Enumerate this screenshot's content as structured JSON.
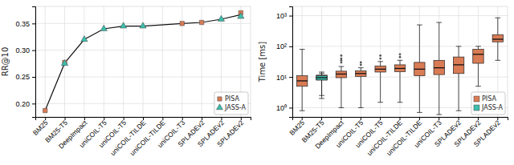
{
  "chart_data": [
    {
      "type": "line",
      "ylabel": "RR@10",
      "xlim": [
        -0.5,
        10.5
      ],
      "xticks": [
        {
          "value": 0,
          "label": "BM25"
        },
        {
          "value": 1,
          "label": "BM25-T5"
        },
        {
          "value": 2,
          "label": "DeepImpact"
        },
        {
          "value": 3,
          "label": "uniCOIL-T5"
        },
        {
          "value": 4,
          "label": "uniCOIL-T5"
        },
        {
          "value": 5,
          "label": "uniCOIL-TILDE"
        },
        {
          "value": 6,
          "label": "uniCOIL-TILDE"
        },
        {
          "value": 7,
          "label": "uniCOIL-T3"
        },
        {
          "value": 8,
          "label": "SPLADEv2"
        },
        {
          "value": 9,
          "label": "SPLADEv2"
        },
        {
          "value": 10,
          "label": "SPLADEv2"
        }
      ],
      "ylim": [
        0.175,
        0.382
      ],
      "yticks": [
        {
          "value": 0.2,
          "label": "0.20"
        },
        0.25,
        {
          "value": 0.3,
          "label": "0.30"
        },
        0.35
      ],
      "grid": true,
      "legend": "lower right",
      "series": [
        {
          "type": "line",
          "color": "#111111",
          "x": [
            0,
            1,
            2,
            3,
            4,
            5,
            7,
            8,
            9,
            10
          ],
          "values": [
            0.187,
            0.276,
            0.32,
            0.34,
            0.345,
            0.345,
            0.35,
            0.352,
            0.358,
            0.3665
          ]
        },
        {
          "name": "PISA",
          "type": "scatter",
          "marker": "square",
          "color": "#d97b54",
          "x": [
            0,
            1,
            7,
            8,
            10
          ],
          "values": [
            0.187,
            0.277,
            0.35,
            0.352,
            0.37
          ]
        },
        {
          "name": "JASS-A",
          "type": "scatter",
          "marker": "triangle",
          "color": "#3dbdac",
          "x": [
            1,
            2,
            3,
            4,
            5,
            9,
            10
          ],
          "values": [
            0.275,
            0.32,
            0.34,
            0.345,
            0.345,
            0.358,
            0.363
          ]
        }
      ]
    },
    {
      "type": "box",
      "ylabel": "Time [ms]",
      "log": "y",
      "categories": [
        "BM25",
        "BM25-T5",
        "DeepImpact",
        "uniCOIL-T5",
        "uniCOIL-T5",
        "uniCOIL-TILDE",
        "uniCOIL-TILDE",
        "uniCOIL-T3",
        "SPLADEv2",
        "SPLADEv2",
        "SPLADEv2"
      ],
      "ylim": [
        0.5,
        2000
      ],
      "yticks": [
        {
          "value": 1,
          "label": "10⁰"
        },
        {
          "value": 10,
          "label": "10¹"
        },
        {
          "value": 100,
          "label": "10²"
        },
        {
          "value": 1000,
          "label": "10³"
        }
      ],
      "grid": true,
      "legend": "lower right",
      "series": [
        {
          "name": "PISA",
          "color": "#d97b54",
          "values": [
            {
              "med": 7.5,
              "q1": 5.0,
              "q3": 11.0,
              "whislo": 0.8,
              "whishi": 80.0,
              "fliers": []
            },
            {
              "med": 9.5,
              "q1": 8.0,
              "q3": 11.5,
              "whislo": 2.0,
              "whishi": 14.5,
              "fliers": []
            },
            {
              "med": 12.5,
              "q1": 9.5,
              "q3": 15.5,
              "whislo": 1.0,
              "whishi": 22.0,
              "fliers": [
                30.0,
                35.0,
                40.0,
                50.0
              ]
            },
            {
              "med": 13.0,
              "q1": 10.5,
              "q3": 16.0,
              "whislo": 1.0,
              "whishi": 20.0,
              "fliers": [
                25.0,
                30.0
              ]
            },
            {
              "med": 18.0,
              "q1": 14.5,
              "q3": 23.0,
              "whislo": 1.5,
              "whishi": 32.0,
              "fliers": [
                40.0,
                50.0
              ]
            },
            {
              "med": 19.0,
              "q1": 15.0,
              "q3": 25.0,
              "whislo": 1.5,
              "whishi": 35.0,
              "fliers": [
                45.0,
                55.0
              ]
            },
            {
              "med": 18.0,
              "q1": 11.0,
              "q3": 30.0,
              "whislo": 0.7,
              "whishi": 500.0,
              "fliers": []
            },
            {
              "med": 20.0,
              "q1": 12.0,
              "q3": 35.0,
              "whislo": 0.6,
              "whishi": 600.0,
              "fliers": []
            },
            {
              "med": 25.0,
              "q1": 13.0,
              "q3": 45.0,
              "whislo": 0.8,
              "whishi": 100.0,
              "fliers": []
            },
            {
              "med": 55.0,
              "q1": 28.0,
              "q3": 80.0,
              "whislo": 5.0,
              "whishi": 100.0,
              "fliers": []
            },
            {
              "med": 170.0,
              "q1": 140.0,
              "q3": 240.0,
              "whislo": 35.0,
              "whishi": 850.0,
              "fliers": []
            }
          ]
        },
        {
          "name": "JASS-A",
          "color": "#3dbdac",
          "values": [
            null,
            {
              "med": 9.5,
              "q1": 8.0,
              "q3": 11.0,
              "whislo": 2.5,
              "whishi": 13.0
            },
            null,
            null,
            null,
            null,
            null,
            null,
            null,
            null,
            null
          ]
        }
      ]
    }
  ]
}
